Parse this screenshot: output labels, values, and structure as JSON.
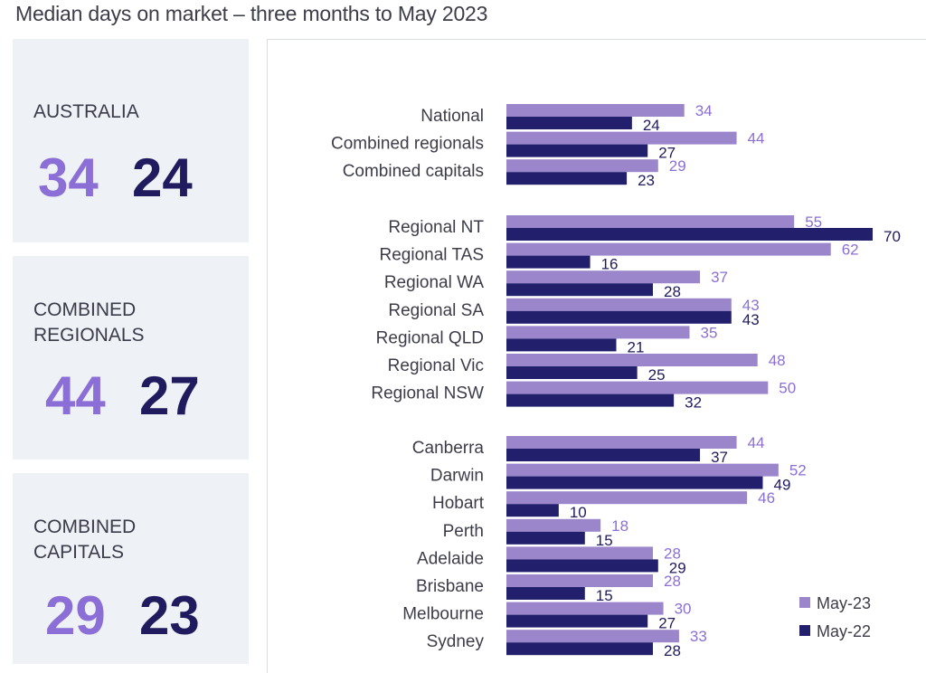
{
  "title": "Median days on market – three months to May 2023",
  "colors": {
    "may23": "#9b86cc",
    "may22": "#221f6d",
    "may23_text": "#8b6fd6",
    "may22_text": "#1f1b5e"
  },
  "cards": [
    {
      "label": "AUSTRALIA",
      "may23": "34",
      "may22": "24"
    },
    {
      "label": "COMBINED\nREGIONALS",
      "may23": "44",
      "may22": "27"
    },
    {
      "label": "COMBINED\nCAPITALS",
      "may23": "29",
      "may22": "23"
    }
  ],
  "chart_data": {
    "type": "bar",
    "orientation": "horizontal",
    "xlim": [
      0,
      70
    ],
    "grid": false,
    "legend_position": "bottom-right",
    "groups": [
      {
        "categories": [
          "National",
          "Combined regionals",
          "Combined capitals"
        ],
        "may23": [
          34,
          44,
          29
        ],
        "may22": [
          24,
          27,
          23
        ]
      },
      {
        "categories": [
          "Regional NT",
          "Regional TAS",
          "Regional WA",
          "Regional SA",
          "Regional QLD",
          "Regional Vic",
          "Regional NSW"
        ],
        "may23": [
          55,
          62,
          37,
          43,
          35,
          48,
          50
        ],
        "may22": [
          70,
          16,
          28,
          43,
          21,
          25,
          32
        ]
      },
      {
        "categories": [
          "Canberra",
          "Darwin",
          "Hobart",
          "Perth",
          "Adelaide",
          "Brisbane",
          "Melbourne",
          "Sydney"
        ],
        "may23": [
          44,
          52,
          46,
          18,
          28,
          28,
          30,
          33
        ],
        "may22": [
          37,
          49,
          10,
          15,
          29,
          15,
          27,
          28
        ]
      }
    ],
    "series": [
      {
        "name": "May-23",
        "key": "may23"
      },
      {
        "name": "May-22",
        "key": "may22"
      }
    ]
  }
}
